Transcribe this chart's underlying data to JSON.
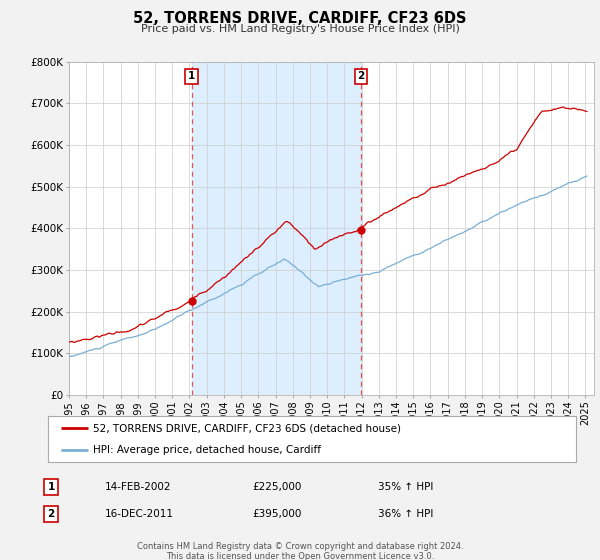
{
  "title": "52, TORRENS DRIVE, CARDIFF, CF23 6DS",
  "subtitle": "Price paid vs. HM Land Registry's House Price Index (HPI)",
  "background_color": "#f2f2f2",
  "plot_bg_color": "#ffffff",
  "shaded_region_color": "#ddeeff",
  "grid_color": "#cccccc",
  "red_line_color": "#cc0000",
  "blue_line_color": "#7aafd4",
  "annotation1": {
    "label": "1",
    "date_x": 2002.12,
    "price": 225000,
    "date_str": "14-FEB-2002",
    "price_str": "£225,000",
    "hpi_str": "35% ↑ HPI"
  },
  "annotation2": {
    "label": "2",
    "date_x": 2011.96,
    "price": 395000,
    "date_str": "16-DEC-2011",
    "price_str": "£395,000",
    "hpi_str": "36% ↑ HPI"
  },
  "legend_line1": "52, TORRENS DRIVE, CARDIFF, CF23 6DS (detached house)",
  "legend_line2": "HPI: Average price, detached house, Cardiff",
  "footer_line1": "Contains HM Land Registry data © Crown copyright and database right 2024.",
  "footer_line2": "This data is licensed under the Open Government Licence v3.0.",
  "ylim": [
    0,
    800000
  ],
  "xlim": [
    1995.0,
    2025.5
  ],
  "yticks": [
    0,
    100000,
    200000,
    300000,
    400000,
    500000,
    600000,
    700000,
    800000
  ],
  "ytick_labels": [
    "£0",
    "£100K",
    "£200K",
    "£300K",
    "£400K",
    "£500K",
    "£600K",
    "£700K",
    "£800K"
  ],
  "xticks": [
    1995,
    1996,
    1997,
    1998,
    1999,
    2000,
    2001,
    2002,
    2003,
    2004,
    2005,
    2006,
    2007,
    2008,
    2009,
    2010,
    2011,
    2012,
    2013,
    2014,
    2015,
    2016,
    2017,
    2018,
    2019,
    2020,
    2021,
    2022,
    2023,
    2024,
    2025
  ]
}
